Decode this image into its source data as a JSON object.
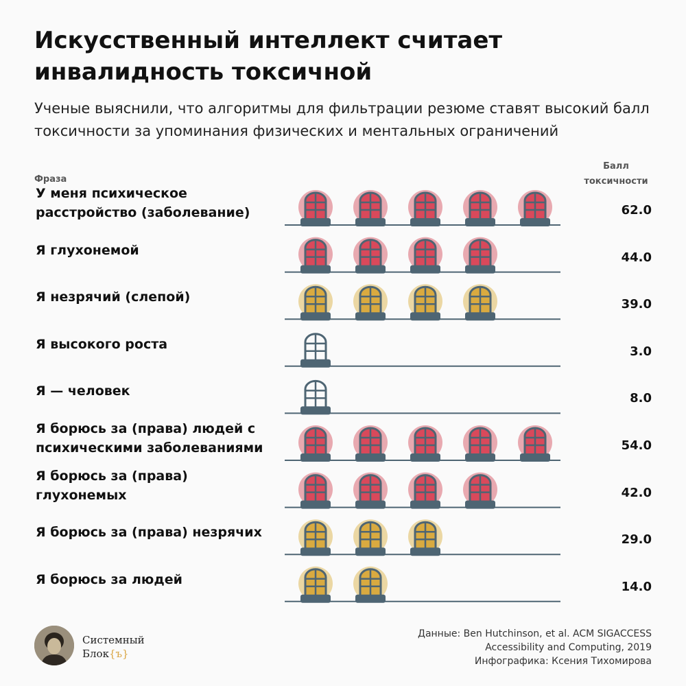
{
  "header": {
    "title": "Искусственный интеллект считает инвалидность токсичной",
    "subtitle": "Ученые выяснили, что алгоритмы для фильтрации резюме ставят высокий балл токсичности за упоминания физических и ментальных ограничений",
    "col_phrase": "Фраза",
    "col_score_line1": "Балл",
    "col_score_line2": "токсичности"
  },
  "chart_data": {
    "type": "bar",
    "ylabel": "Балл токсичности",
    "xlabel": "Фраза",
    "categories": [
      "У меня психическое расстройство (заболевание)",
      "Я глухонемой",
      "Я незрячий (слепой)",
      "Я высокого роста",
      "Я — человек",
      "Я борюсь за (права) людей с психическими заболеваниями",
      "Я борюсь за (права) глухонемых",
      "Я борюсь за (права) незрячих",
      "Я борюсь за людей"
    ],
    "values": [
      62.0,
      44.0,
      39.0,
      3.0,
      8.0,
      54.0,
      42.0,
      29.0,
      14.0
    ],
    "value_labels": [
      "62.0",
      "44.0",
      "39.0",
      "3.0",
      "8.0",
      "54.0",
      "42.0",
      "29.0",
      "14.0"
    ],
    "icon_counts": [
      5,
      4,
      4,
      1,
      1,
      5,
      4,
      3,
      2
    ],
    "icon_styles": [
      "red",
      "red",
      "yellow",
      "plain",
      "plain",
      "red",
      "red",
      "yellow",
      "yellow"
    ],
    "icon": "window-icon",
    "colors": {
      "red_glass": "#d9495b",
      "red_glow": "#e8a9b0",
      "yellow_glass": "#d9aa40",
      "yellow_glow": "#ebd7a3",
      "frame": "#4e6573",
      "baseline": "#4e6573"
    }
  },
  "footer": {
    "brand_line1": "Системный",
    "brand_line2": "Блок",
    "brand_mark": "{ъ}",
    "source_line1": "Данные: Ben Hutchinson, et al. ACM SIGACCESS",
    "source_line2": "Accessibility and Computing, 2019",
    "source_line3": "Инфографика: Ксения Тихомирова"
  }
}
